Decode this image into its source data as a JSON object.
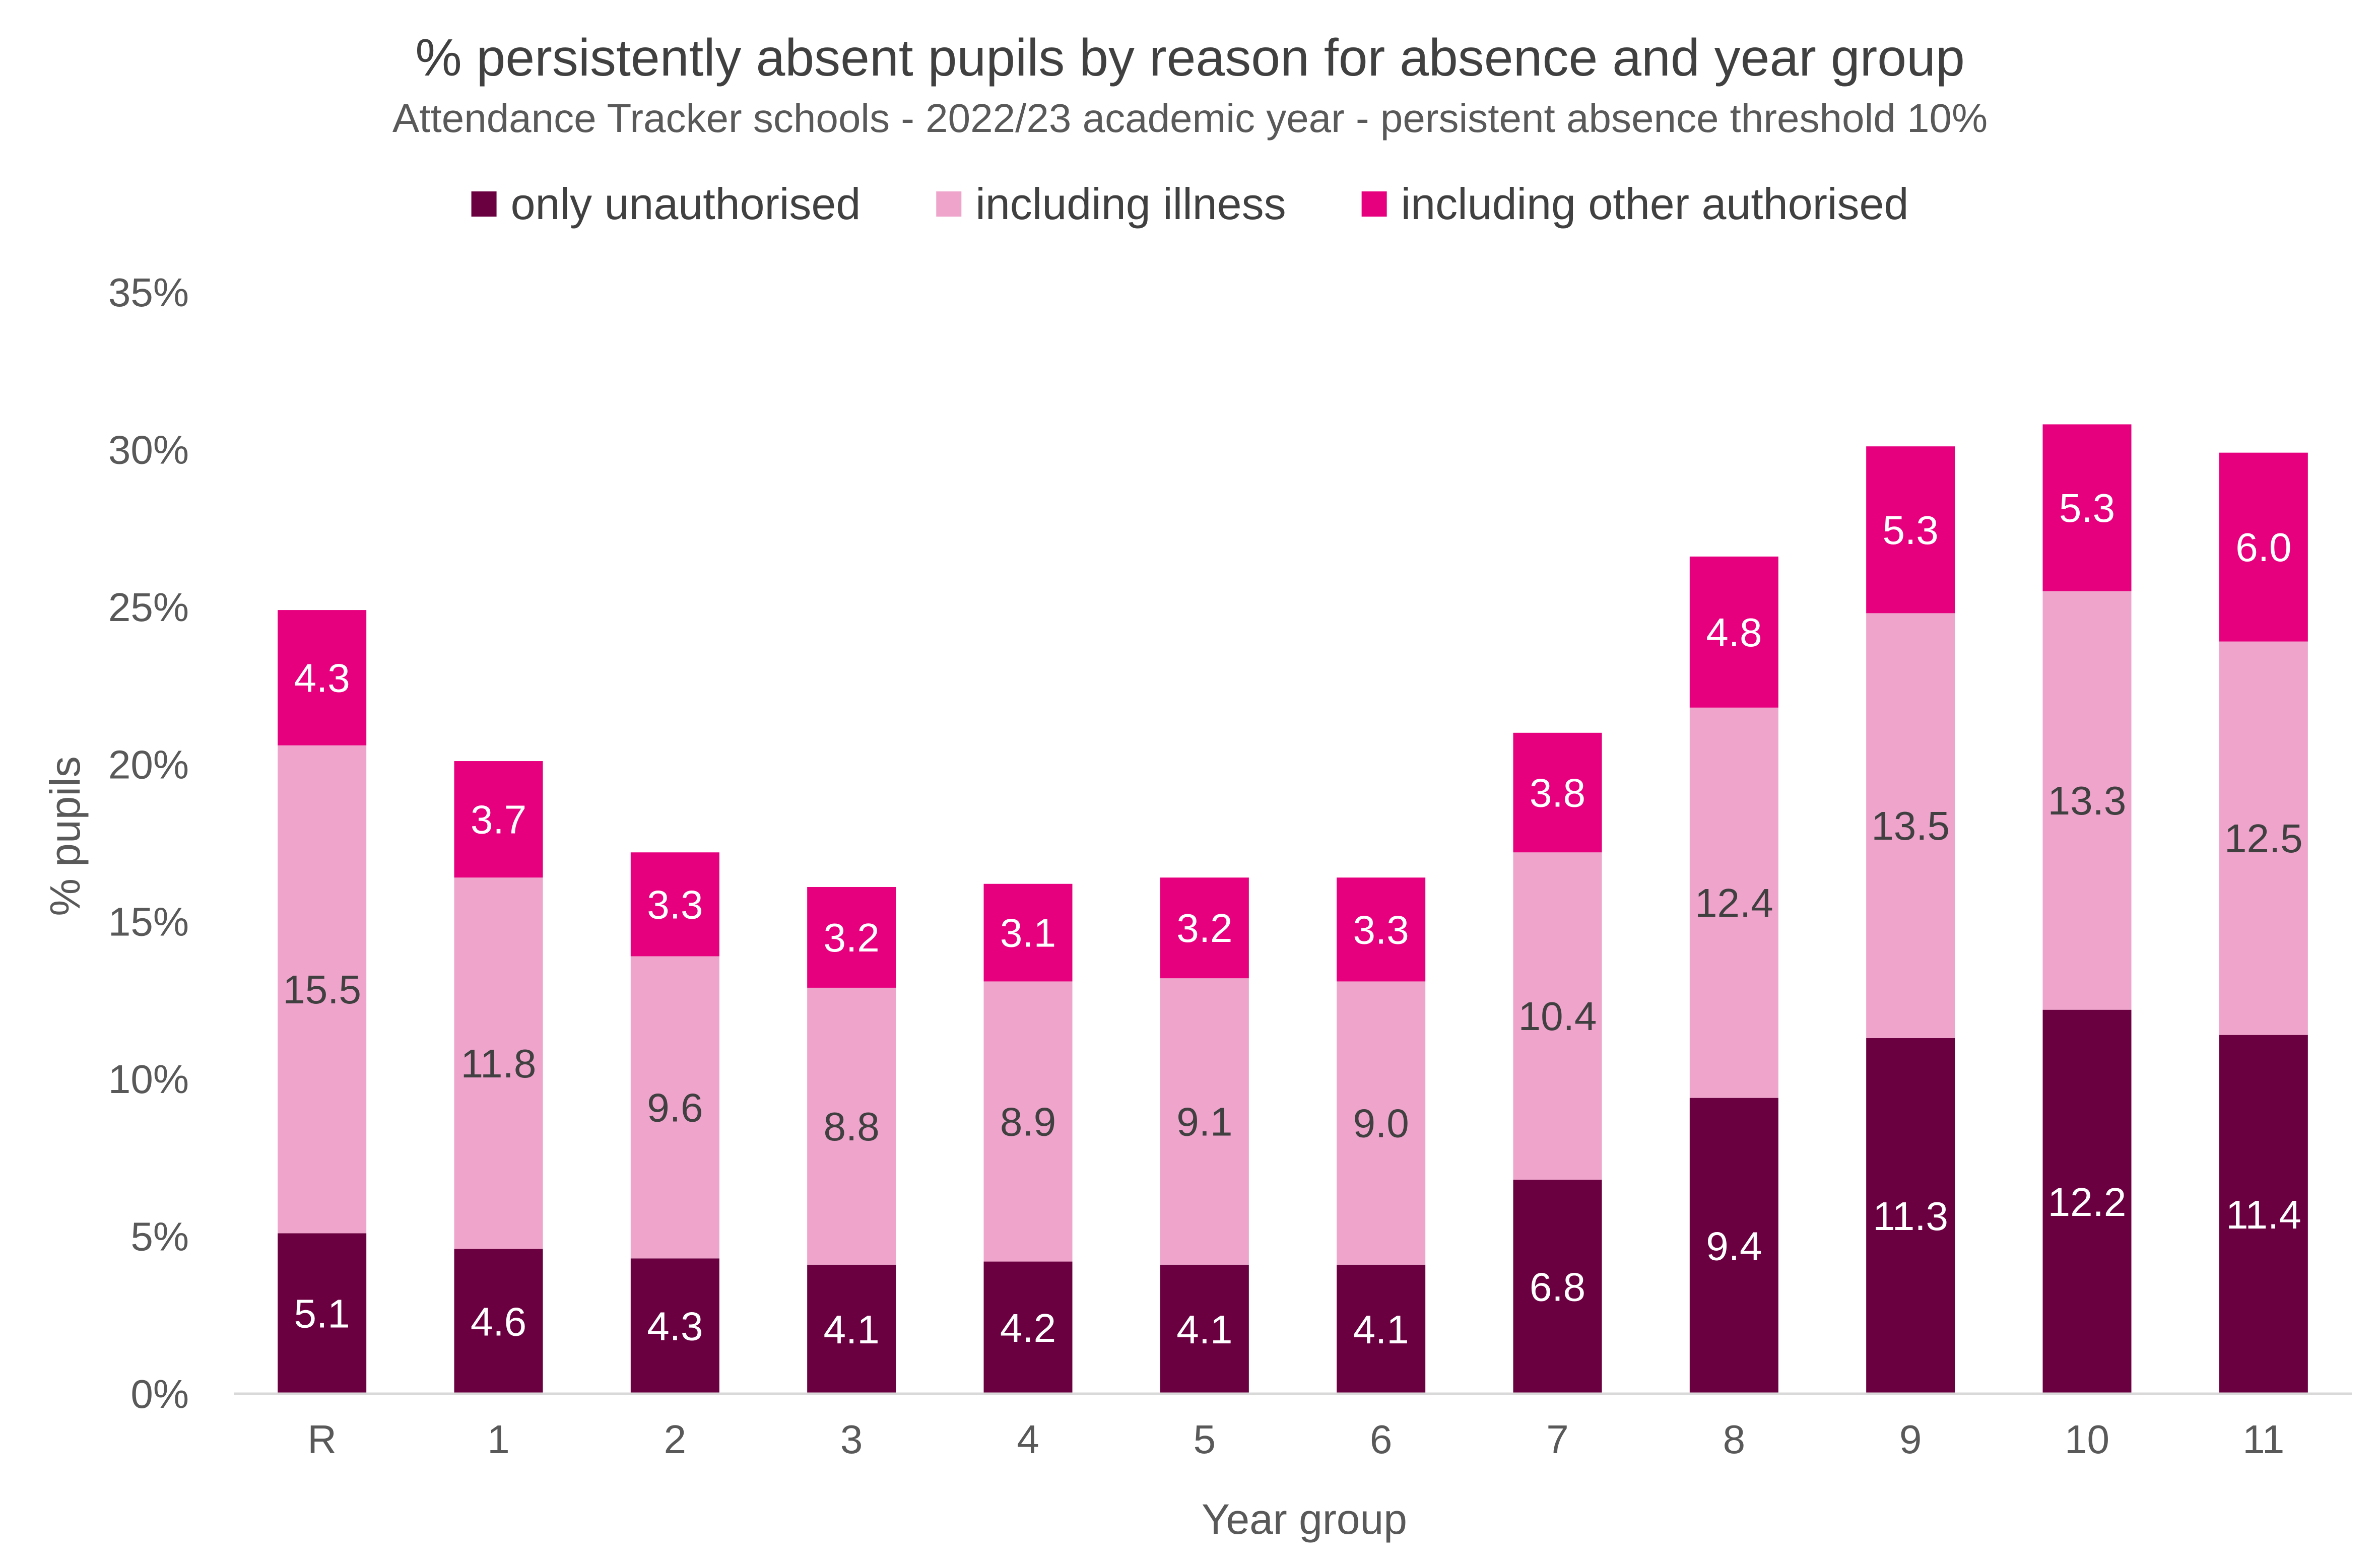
{
  "chart_data": {
    "type": "bar",
    "stacked": true,
    "title": "% persistently absent pupils by reason for absence and year group",
    "subtitle": "Attendance Tracker schools - 2022/23 academic year - persistent absence threshold 10%",
    "xlabel": "Year group",
    "ylabel": "% pupils",
    "ylim": [
      0,
      35
    ],
    "yticks": [
      "0%",
      "5%",
      "10%",
      "15%",
      "20%",
      "25%",
      "30%",
      "35%"
    ],
    "grid": false,
    "legend_position": "top",
    "categories": [
      "R",
      "1",
      "2",
      "3",
      "4",
      "5",
      "6",
      "7",
      "8",
      "9",
      "10",
      "11"
    ],
    "series": [
      {
        "name": "only unauthorised",
        "color": "#6b0040",
        "label_color": "#ffffff",
        "values": [
          5.1,
          4.6,
          4.3,
          4.1,
          4.2,
          4.1,
          4.1,
          6.8,
          9.4,
          11.3,
          12.2,
          11.4
        ],
        "labels": [
          "5.1",
          "4.6",
          "4.3",
          "4.1",
          "4.2",
          "4.1",
          "4.1",
          "6.8",
          "9.4",
          "11.3",
          "12.2",
          "11.4"
        ]
      },
      {
        "name": "including illness",
        "color": "#eea4cb",
        "label_color": "#404040",
        "values": [
          15.5,
          11.8,
          9.6,
          8.8,
          8.9,
          9.1,
          9.0,
          10.4,
          12.4,
          13.5,
          13.3,
          12.5
        ],
        "labels": [
          "15.5",
          "11.8",
          "9.6",
          "8.8",
          "8.9",
          "9.1",
          "9.0",
          "10.4",
          "12.4",
          "13.5",
          "13.3",
          "12.5"
        ]
      },
      {
        "name": "including other authorised",
        "color": "#e6007e",
        "label_color": "#ffffff",
        "values": [
          4.3,
          3.7,
          3.3,
          3.2,
          3.1,
          3.2,
          3.3,
          3.8,
          4.8,
          5.3,
          5.3,
          6.0
        ],
        "labels": [
          "4.3",
          "3.7",
          "3.3",
          "3.2",
          "3.1",
          "3.2",
          "3.3",
          "3.8",
          "4.8",
          "5.3",
          "5.3",
          "6.0"
        ]
      }
    ]
  }
}
